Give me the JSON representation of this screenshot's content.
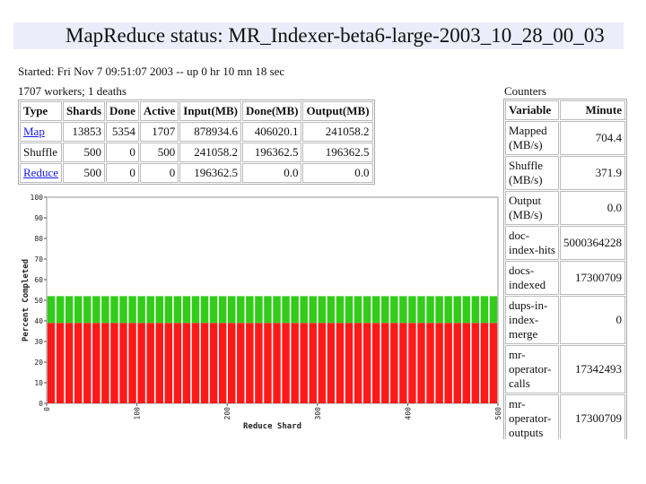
{
  "header": {
    "title": "MapReduce status: MR_Indexer-beta6-large-2003_10_28_00_03"
  },
  "status": {
    "started": "Started: Fri Nov 7 09:51:07 2003 -- up 0 hr 10 mn 18 sec",
    "workers": "1707 workers; 1 deaths"
  },
  "table": {
    "columns": [
      "Type",
      "Shards",
      "Done",
      "Active",
      "Input(MB)",
      "Done(MB)",
      "Output(MB)"
    ],
    "rows": [
      [
        "Map",
        "13853",
        "5354",
        "1707",
        "878934.6",
        "406020.1",
        "241058.2"
      ],
      [
        "Shuffle",
        "500",
        "0",
        "500",
        "241058.2",
        "196362.5",
        "196362.5"
      ],
      [
        "Reduce",
        "500",
        "0",
        "0",
        "196362.5",
        "0.0",
        "0.0"
      ]
    ]
  },
  "counters": {
    "title": "Counters",
    "columns": [
      "Variable",
      "Minute"
    ],
    "rows": [
      [
        "Mapped (MB/s)",
        "704.4"
      ],
      [
        "Shuffle (MB/s)",
        "371.9"
      ],
      [
        "Output (MB/s)",
        "0.0"
      ],
      [
        "doc-index-hits",
        "5000364228"
      ],
      [
        "docs-indexed",
        "17300709"
      ],
      [
        "dups-in-index-merge",
        "0"
      ],
      [
        "mr-operator-calls",
        "17342493"
      ],
      [
        "mr-operator-outputs",
        "17300709"
      ]
    ]
  },
  "chart_data": {
    "type": "histogram",
    "xlabel": "Reduce Shard",
    "ylabel": "Percent Completed",
    "bins": [
      0,
      10,
      20,
      30,
      40,
      50,
      60,
      70,
      80,
      90,
      100,
      110,
      120,
      130,
      140,
      150,
      160,
      170,
      180,
      190,
      200,
      210,
      220,
      230,
      240,
      250,
      260,
      270,
      280,
      290,
      300,
      310,
      320,
      330,
      340,
      350,
      360,
      370,
      380,
      390,
      400,
      410,
      420,
      430,
      440,
      450,
      460,
      470,
      480,
      490,
      500
    ],
    "series": [
      {
        "color": "#ff1a1a",
        "values": [
          39,
          39,
          39,
          39,
          39,
          39,
          39,
          39,
          39,
          39,
          39,
          39,
          39,
          39,
          39,
          39,
          39,
          39,
          39,
          39,
          39,
          39,
          39,
          39,
          39,
          39,
          39,
          39,
          39,
          39,
          39,
          39,
          39,
          39,
          39,
          39,
          39,
          39,
          39,
          39,
          39,
          39,
          39,
          39,
          39,
          39,
          39,
          39,
          39,
          39
        ]
      },
      {
        "color": "#33cc1a",
        "values": [
          13,
          13,
          13,
          13,
          13,
          13,
          13,
          13,
          13,
          13,
          13,
          13,
          13,
          13,
          13,
          13,
          13,
          13,
          13,
          13,
          13,
          13,
          13,
          13,
          13,
          13,
          13,
          13,
          13,
          13,
          13,
          13,
          13,
          13,
          13,
          13,
          13,
          13,
          13,
          13,
          13,
          13,
          13,
          13,
          13,
          13,
          13,
          13,
          13,
          13
        ]
      }
    ],
    "xlim": [
      0,
      500
    ],
    "xticks": [
      0,
      100,
      200,
      300,
      400,
      500
    ],
    "ylim": [
      0,
      100
    ],
    "yticks": [
      0,
      10,
      20,
      30,
      40,
      50,
      60,
      70,
      80,
      90,
      100
    ]
  }
}
